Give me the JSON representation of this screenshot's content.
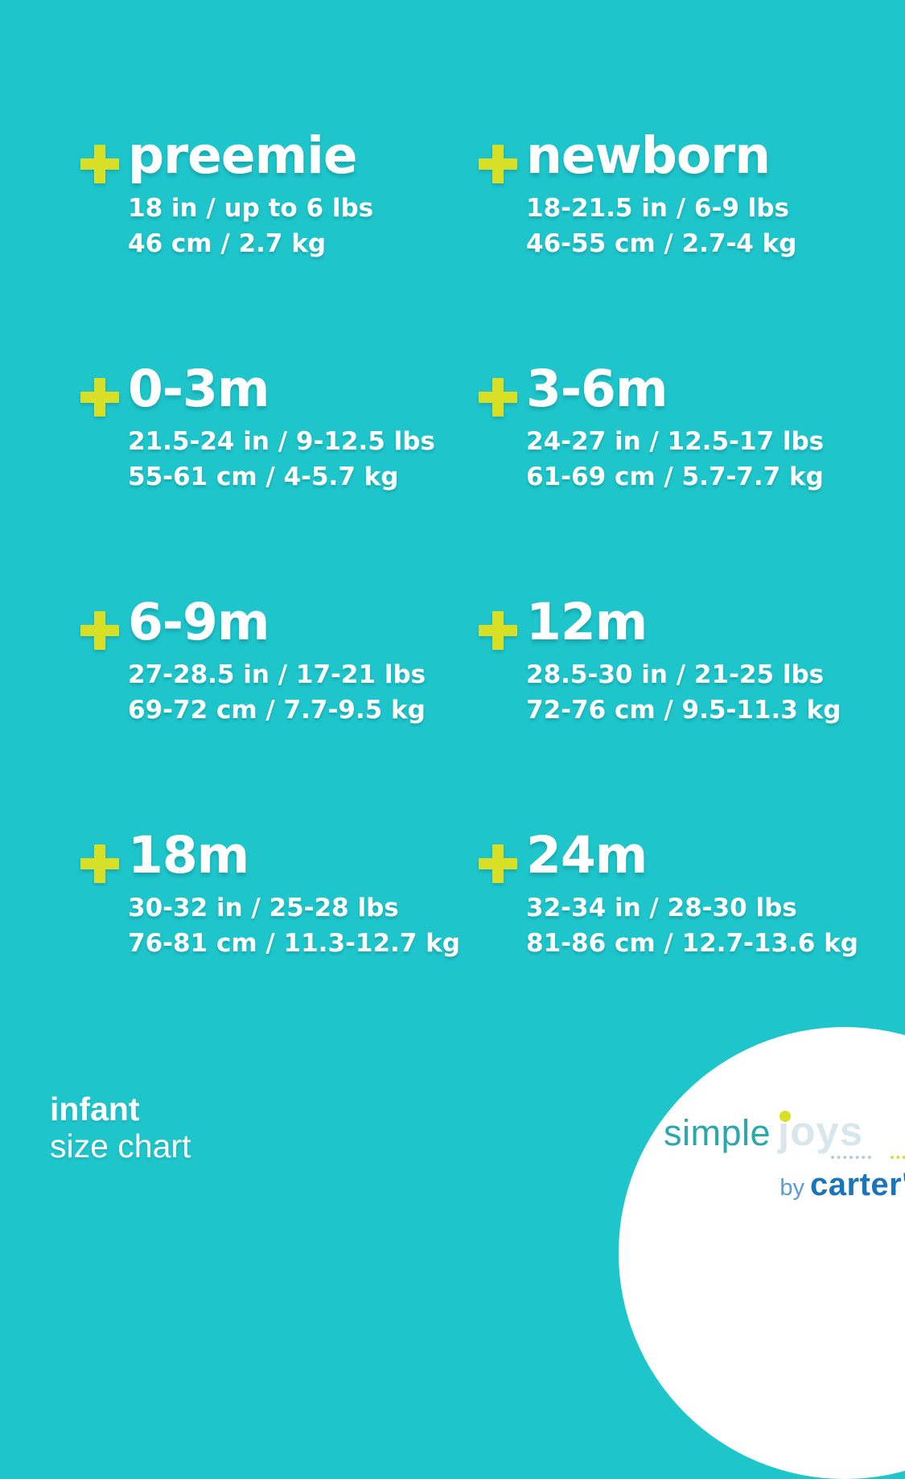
{
  "page": {
    "background_color": "#1ec6cc",
    "accent_color": "#d7df26",
    "text_color": "#ffffff"
  },
  "sizes": [
    {
      "label": "preemie",
      "imperial": "18 in / up to 6 lbs",
      "metric": "46 cm / 2.7 kg"
    },
    {
      "label": "newborn",
      "imperial": "18-21.5 in / 6-9 lbs",
      "metric": "46-55 cm / 2.7-4 kg"
    },
    {
      "label": "0-3m",
      "imperial": "21.5-24 in / 9-12.5 lbs",
      "metric": "55-61 cm / 4-5.7 kg"
    },
    {
      "label": "3-6m",
      "imperial": "24-27 in / 12.5-17 lbs",
      "metric": "61-69 cm / 5.7-7.7 kg"
    },
    {
      "label": "6-9m",
      "imperial": "27-28.5 in / 17-21 lbs",
      "metric": "69-72 cm / 7.7-9.5 kg"
    },
    {
      "label": "12m",
      "imperial": "28.5-30 in / 21-25 lbs",
      "metric": "72-76 cm / 9.5-11.3 kg"
    },
    {
      "label": "18m",
      "imperial": "30-32 in / 25-28 lbs",
      "metric": "76-81 cm / 11.3-12.7 kg"
    },
    {
      "label": "24m",
      "imperial": "32-34 in / 28-30 lbs",
      "metric": "81-86 cm / 12.7-13.6 kg"
    }
  ],
  "footer": {
    "title": "infant",
    "subtitle": "size chart"
  },
  "logo": {
    "word_simple": "simple",
    "word_joys": "joys",
    "by": "by",
    "carters": "carter's",
    "trademark": "™",
    "colors": {
      "simple": "#2ba7ae",
      "joys": "#d9e6ec",
      "joys_dot": "#d7df26",
      "by": "#5b9bd5",
      "carters": "#1b75bb",
      "circle": "#ffffff"
    }
  }
}
